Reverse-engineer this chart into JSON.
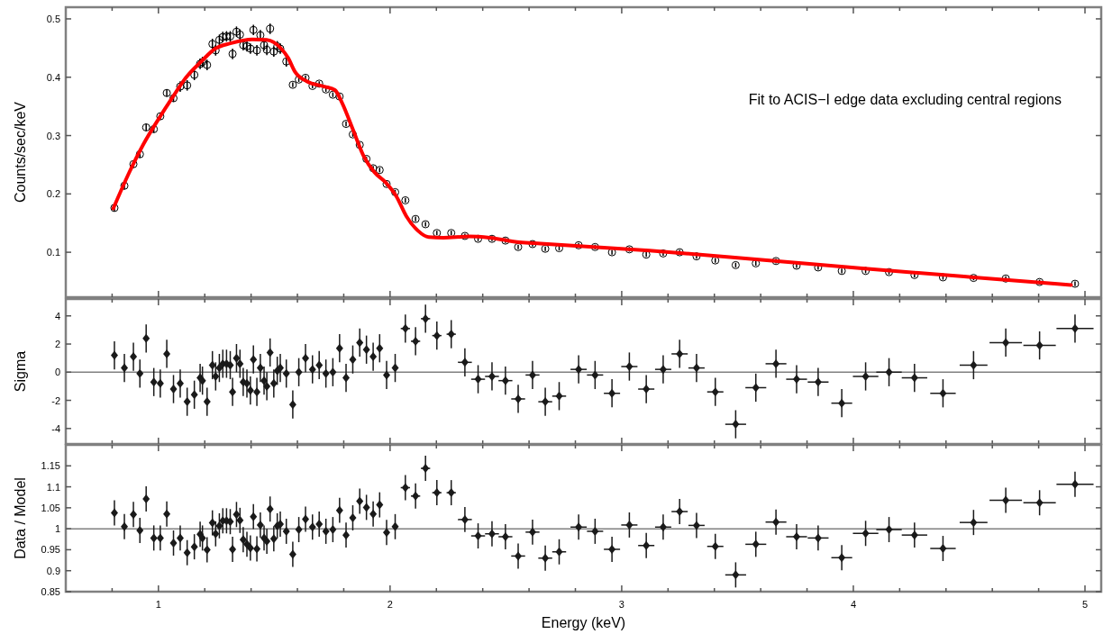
{
  "chart_data": [
    {
      "type": "scatter",
      "xlim": [
        0.6,
        5.07
      ],
      "ylim": [
        0.023,
        0.52
      ],
      "yticks": [
        0.1,
        0.2,
        0.3,
        0.4,
        0.5
      ],
      "xticks": [
        {
          "value": 0.8,
          "label": null
        },
        1,
        {
          "value": 1.2,
          "label": null
        },
        {
          "value": 1.4,
          "label": null
        },
        {
          "value": 1.6,
          "label": null
        },
        {
          "value": 1.8,
          "label": null
        },
        2,
        {
          "value": 2.2,
          "label": null
        },
        {
          "value": 2.4,
          "label": null
        },
        {
          "value": 2.6,
          "label": null
        },
        {
          "value": 2.8,
          "label": null
        },
        3,
        {
          "value": 3.2,
          "label": null
        },
        {
          "value": 3.4,
          "label": null
        },
        {
          "value": 3.6,
          "label": null
        },
        {
          "value": 3.8,
          "label": null
        },
        4,
        {
          "value": 4.2,
          "label": null
        },
        {
          "value": 4.4,
          "label": null
        },
        {
          "value": 4.6,
          "label": null
        },
        {
          "value": 4.8,
          "label": null
        },
        5
      ],
      "tick_labels": "y",
      "ylabel": "Counts/sec/keV",
      "annotations": [
        "Fit to ACIS−I edge data excluding central regions"
      ],
      "x": [
        0.81,
        0.853,
        0.892,
        0.92,
        0.947,
        0.98,
        1.008,
        1.036,
        1.065,
        1.094,
        1.124,
        1.155,
        1.18,
        1.19,
        1.21,
        1.233,
        1.247,
        1.263,
        1.278,
        1.294,
        1.31,
        1.32,
        1.337,
        1.352,
        1.366,
        1.382,
        1.397,
        1.41,
        1.425,
        1.44,
        1.456,
        1.468,
        1.482,
        1.498,
        1.513,
        1.526,
        1.552,
        1.58,
        1.606,
        1.635,
        1.665,
        1.694,
        1.723,
        1.753,
        1.782,
        1.81,
        1.839,
        1.869,
        1.898,
        1.927,
        1.955,
        1.985,
        2.022,
        2.066,
        2.11,
        2.153,
        2.202,
        2.264,
        2.323,
        2.38,
        2.44,
        2.498,
        2.553,
        2.615,
        2.67,
        2.73,
        2.814,
        2.885,
        2.958,
        3.033,
        3.106,
        3.179,
        3.25,
        3.323,
        3.404,
        3.492,
        3.579,
        3.666,
        3.755,
        3.848,
        3.95,
        4.053,
        4.154,
        4.264,
        4.387,
        4.519,
        4.658,
        4.804,
        4.957
      ],
      "series": [
        {
          "color": "#000000",
          "marker": "circle",
          "values": [
            0.176,
            0.214,
            0.251,
            0.268,
            0.314,
            0.311,
            0.333,
            0.373,
            0.364,
            0.384,
            0.386,
            0.404,
            0.423,
            0.426,
            0.421,
            0.457,
            0.446,
            0.464,
            0.469,
            0.47,
            0.47,
            0.44,
            0.478,
            0.473,
            0.455,
            0.453,
            0.449,
            0.481,
            0.446,
            0.472,
            0.455,
            0.447,
            0.483,
            0.444,
            0.453,
            0.449,
            0.427,
            0.387,
            0.396,
            0.399,
            0.385,
            0.389,
            0.379,
            0.37,
            0.367,
            0.32,
            0.302,
            0.284,
            0.26,
            0.244,
            0.241,
            0.217,
            0.203,
            0.189,
            0.157,
            0.148,
            0.133,
            0.133,
            0.128,
            0.123,
            0.123,
            0.12,
            0.109,
            0.114,
            0.106,
            0.107,
            0.112,
            0.109,
            0.1,
            0.105,
            0.096,
            0.098,
            0.1,
            0.093,
            0.086,
            0.078,
            0.081,
            0.085,
            0.077,
            0.074,
            0.068,
            0.068,
            0.066,
            0.061,
            0.057,
            0.056,
            0.055,
            0.049,
            0.046
          ],
          "errors": [
            0.006,
            0.006,
            0.006,
            0.006,
            0.006,
            0.006,
            0.006,
            0.006,
            0.006,
            0.009,
            0.009,
            0.009,
            0.009,
            0.009,
            0.009,
            0.009,
            0.009,
            0.009,
            0.009,
            0.009,
            0.009,
            0.009,
            0.009,
            0.009,
            0.009,
            0.009,
            0.009,
            0.009,
            0.009,
            0.009,
            0.009,
            0.009,
            0.009,
            0.009,
            0.009,
            0.009,
            0.009,
            0.004,
            0.004,
            0.004,
            0.004,
            0.004,
            0.004,
            0.004,
            0.004,
            0.004,
            0.004,
            0.004,
            0.004,
            0.004,
            0.004,
            0.004,
            0.004,
            0.004,
            0.004,
            0.004,
            0.004,
            0.004,
            0.004,
            0.004,
            0.004,
            0.004,
            0.004,
            0.004,
            0.004,
            0.004,
            0.004,
            0.004,
            0.004,
            0.004,
            0.004,
            0.004,
            0.004,
            0.004,
            0.004,
            0.004,
            0.004,
            0.004,
            0.004,
            0.004,
            0.004,
            0.004,
            0.004,
            0.004,
            0.004,
            0.004,
            0.004,
            0.004,
            0.004
          ]
        },
        {
          "type": "line",
          "color": "#ff0000",
          "x": [
            0.805,
            0.873,
            0.935,
            1.0,
            1.06,
            1.12,
            1.185,
            1.245,
            1.31,
            1.405,
            1.467,
            1.53,
            1.56,
            1.59,
            1.64,
            1.716,
            1.762,
            1.793,
            1.84,
            1.887,
            1.933,
            1.98,
            2.027,
            2.07,
            2.12,
            2.167,
            2.23,
            2.34,
            2.43,
            2.56,
            2.65,
            3.12,
            3.58,
            4.05,
            4.52,
            4.94
          ],
          "values": [
            0.175,
            0.236,
            0.285,
            0.328,
            0.365,
            0.4,
            0.427,
            0.449,
            0.458,
            0.465,
            0.464,
            0.449,
            0.433,
            0.409,
            0.393,
            0.384,
            0.378,
            0.356,
            0.31,
            0.264,
            0.237,
            0.22,
            0.196,
            0.162,
            0.137,
            0.126,
            0.125,
            0.127,
            0.125,
            0.117,
            0.115,
            0.103,
            0.088,
            0.072,
            0.057,
            0.044
          ]
        }
      ]
    },
    {
      "type": "scatter",
      "xlim": [
        0.6,
        5.07
      ],
      "ylim": [
        -5.1,
        5.2
      ],
      "yticks": [
        -4,
        -2,
        0,
        2,
        4
      ],
      "xticks": [
        {
          "value": 0.8,
          "label": null
        },
        1,
        {
          "value": 1.2,
          "label": null
        },
        {
          "value": 1.4,
          "label": null
        },
        {
          "value": 1.6,
          "label": null
        },
        {
          "value": 1.8,
          "label": null
        },
        2,
        {
          "value": 2.2,
          "label": null
        },
        {
          "value": 2.4,
          "label": null
        },
        {
          "value": 2.6,
          "label": null
        },
        {
          "value": 2.8,
          "label": null
        },
        3,
        {
          "value": 3.2,
          "label": null
        },
        {
          "value": 3.4,
          "label": null
        },
        {
          "value": 3.6,
          "label": null
        },
        {
          "value": 3.8,
          "label": null
        },
        4,
        {
          "value": 4.2,
          "label": null
        },
        {
          "value": 4.4,
          "label": null
        },
        {
          "value": 4.6,
          "label": null
        },
        {
          "value": 4.8,
          "label": null
        },
        5
      ],
      "tick_labels": "y",
      "ylabel": "Sigma",
      "marker": "diamond",
      "ref_lines": [
        {
          "axis": "y",
          "value": 0,
          "color": "#808080"
        }
      ],
      "x": [
        0.81,
        0.853,
        0.892,
        0.92,
        0.947,
        0.98,
        1.008,
        1.036,
        1.065,
        1.094,
        1.124,
        1.155,
        1.18,
        1.19,
        1.21,
        1.233,
        1.247,
        1.263,
        1.278,
        1.294,
        1.31,
        1.32,
        1.337,
        1.352,
        1.366,
        1.382,
        1.397,
        1.41,
        1.425,
        1.44,
        1.456,
        1.468,
        1.482,
        1.498,
        1.513,
        1.526,
        1.552,
        1.58,
        1.606,
        1.635,
        1.665,
        1.694,
        1.723,
        1.753,
        1.782,
        1.81,
        1.839,
        1.869,
        1.898,
        1.927,
        1.955,
        1.985,
        2.022,
        2.066,
        2.11,
        2.153,
        2.202,
        2.264,
        2.323,
        2.38,
        2.44,
        2.498,
        2.553,
        2.615,
        2.67,
        2.73,
        2.814,
        2.885,
        2.958,
        3.033,
        3.106,
        3.179,
        3.25,
        3.323,
        3.404,
        3.492,
        3.579,
        3.666,
        3.755,
        3.848,
        3.95,
        4.053,
        4.154,
        4.264,
        4.387,
        4.519,
        4.658,
        4.804,
        4.957
      ],
      "series": [
        {
          "color": "#1a1a1a",
          "values": [
            1.2,
            0.3,
            1.1,
            -0.1,
            2.4,
            -0.7,
            -0.8,
            1.3,
            -1.2,
            -0.8,
            -2.1,
            -1.6,
            -0.4,
            -0.6,
            -2.1,
            0.5,
            -0.3,
            0.3,
            0.6,
            0.6,
            0.5,
            -1.4,
            1.0,
            0.6,
            -0.7,
            -0.8,
            -1.3,
            0.9,
            -1.4,
            0.3,
            -0.6,
            -1.0,
            1.4,
            -0.8,
            0.1,
            0.3,
            -0.1,
            -2.3,
            0.0,
            1.0,
            0.2,
            0.5,
            -0.1,
            0.0,
            1.7,
            -0.4,
            0.9,
            2.1,
            1.6,
            1.1,
            1.7,
            -0.2,
            0.3,
            3.1,
            2.2,
            3.8,
            2.6,
            2.7,
            0.7,
            -0.5,
            -0.3,
            -0.6,
            -1.9,
            -0.2,
            -2.1,
            -1.7,
            0.2,
            -0.2,
            -1.5,
            0.4,
            -1.2,
            0.2,
            1.3,
            0.3,
            -1.4,
            -3.7,
            -1.1,
            0.6,
            -0.5,
            -0.7,
            -2.2,
            -0.3,
            0.0,
            -0.4,
            -1.5,
            0.5,
            2.1,
            1.9,
            3.1
          ],
          "errors": [
            1,
            1,
            1,
            1,
            1,
            1,
            1,
            1,
            1,
            1,
            1,
            1,
            1,
            1,
            1,
            1,
            1,
            1,
            1,
            1,
            1,
            1,
            1,
            1,
            1,
            1,
            1,
            1,
            1,
            1,
            1,
            1,
            1,
            1,
            1,
            1,
            1,
            1,
            1,
            1,
            1,
            1,
            1,
            1,
            1,
            1,
            1,
            1,
            1,
            1,
            1,
            1,
            1,
            1,
            1,
            1,
            1,
            1,
            1,
            1,
            1,
            1,
            1,
            1,
            1,
            1,
            1,
            1,
            1,
            1,
            1,
            1,
            1,
            1,
            1,
            1,
            1,
            1,
            1,
            1,
            1,
            1,
            1,
            1,
            1,
            1,
            1,
            1,
            1
          ],
          "xerrors": [
            0.01,
            0.01,
            0.01,
            0.01,
            0.01,
            0.01,
            0.01,
            0.01,
            0.01,
            0.01,
            0.01,
            0.01,
            0.01,
            0.01,
            0.01,
            0.01,
            0.01,
            0.01,
            0.01,
            0.01,
            0.01,
            0.01,
            0.01,
            0.01,
            0.01,
            0.01,
            0.01,
            0.01,
            0.01,
            0.01,
            0.01,
            0.01,
            0.01,
            0.01,
            0.01,
            0.01,
            0.01,
            0.01,
            0.01,
            0.01,
            0.01,
            0.01,
            0.01,
            0.01,
            0.01,
            0.01,
            0.01,
            0.01,
            0.01,
            0.01,
            0.01,
            0.01,
            0.01,
            0.02,
            0.02,
            0.02,
            0.02,
            0.02,
            0.03,
            0.03,
            0.03,
            0.03,
            0.03,
            0.03,
            0.03,
            0.03,
            0.035,
            0.035,
            0.035,
            0.035,
            0.035,
            0.035,
            0.035,
            0.035,
            0.035,
            0.045,
            0.045,
            0.045,
            0.045,
            0.045,
            0.045,
            0.055,
            0.055,
            0.055,
            0.055,
            0.06,
            0.07,
            0.07,
            0.08
          ]
        }
      ]
    },
    {
      "type": "scatter",
      "xlim": [
        0.6,
        5.07
      ],
      "ylim": [
        0.85,
        1.2
      ],
      "yticks": [
        0.85,
        0.9,
        0.95,
        1,
        1.05,
        1.1,
        1.15
      ],
      "xticks": [
        {
          "value": 0.8,
          "label": null
        },
        1,
        {
          "value": 1.2,
          "label": null
        },
        {
          "value": 1.4,
          "label": null
        },
        {
          "value": 1.6,
          "label": null
        },
        {
          "value": 1.8,
          "label": null
        },
        2,
        {
          "value": 2.2,
          "label": null
        },
        {
          "value": 2.4,
          "label": null
        },
        {
          "value": 2.6,
          "label": null
        },
        {
          "value": 2.8,
          "label": null
        },
        3,
        {
          "value": 3.2,
          "label": null
        },
        {
          "value": 3.4,
          "label": null
        },
        {
          "value": 3.6,
          "label": null
        },
        {
          "value": 3.8,
          "label": null
        },
        4,
        {
          "value": 4.2,
          "label": null
        },
        {
          "value": 4.4,
          "label": null
        },
        {
          "value": 4.6,
          "label": null
        },
        {
          "value": 4.8,
          "label": null
        },
        5
      ],
      "ylabel": "Data / Model",
      "xlabel": "Energy (keV)",
      "marker": "diamond",
      "ref_lines": [
        {
          "axis": "y",
          "value": 1,
          "color": "#808080"
        }
      ],
      "x": [
        0.81,
        0.853,
        0.892,
        0.92,
        0.947,
        0.98,
        1.008,
        1.036,
        1.065,
        1.094,
        1.124,
        1.155,
        1.18,
        1.19,
        1.21,
        1.233,
        1.247,
        1.263,
        1.278,
        1.294,
        1.31,
        1.32,
        1.337,
        1.352,
        1.366,
        1.382,
        1.397,
        1.41,
        1.425,
        1.44,
        1.456,
        1.468,
        1.482,
        1.498,
        1.513,
        1.526,
        1.552,
        1.58,
        1.606,
        1.635,
        1.665,
        1.694,
        1.723,
        1.753,
        1.782,
        1.81,
        1.839,
        1.869,
        1.898,
        1.927,
        1.955,
        1.985,
        2.022,
        2.066,
        2.11,
        2.153,
        2.202,
        2.264,
        2.323,
        2.38,
        2.44,
        2.498,
        2.553,
        2.615,
        2.67,
        2.73,
        2.814,
        2.885,
        2.958,
        3.033,
        3.106,
        3.179,
        3.25,
        3.323,
        3.404,
        3.492,
        3.579,
        3.666,
        3.755,
        3.848,
        3.95,
        4.053,
        4.154,
        4.264,
        4.387,
        4.519,
        4.658,
        4.804,
        4.957
      ],
      "series": [
        {
          "color": "#1a1a1a",
          "values": [
            1.038,
            1.005,
            1.034,
            0.996,
            1.071,
            0.978,
            0.978,
            1.035,
            0.966,
            0.978,
            0.943,
            0.957,
            0.987,
            0.978,
            0.95,
            1.014,
            0.988,
            1.007,
            1.019,
            1.019,
            1.017,
            0.951,
            1.034,
            1.02,
            0.974,
            0.963,
            0.954,
            1.029,
            0.952,
            1.009,
            0.978,
            0.97,
            1.047,
            0.976,
            1.007,
            1.011,
            0.994,
            0.939,
            0.998,
            1.023,
            1.004,
            1.011,
            0.994,
            0.998,
            1.044,
            0.985,
            1.026,
            1.066,
            1.051,
            1.035,
            1.057,
            0.991,
            1.005,
            1.098,
            1.078,
            1.144,
            1.086,
            1.086,
            1.022,
            0.983,
            0.988,
            0.981,
            0.935,
            0.992,
            0.93,
            0.945,
            1.004,
            0.994,
            0.951,
            1.009,
            0.96,
            1.004,
            1.041,
            1.008,
            0.958,
            0.89,
            0.963,
            1.016,
            0.981,
            0.978,
            0.931,
            0.989,
            0.998,
            0.985,
            0.953,
            1.015,
            1.068,
            1.062,
            1.106
          ],
          "errors": [
            0.03,
            0.03,
            0.03,
            0.03,
            0.03,
            0.03,
            0.03,
            0.03,
            0.03,
            0.03,
            0.03,
            0.03,
            0.03,
            0.03,
            0.03,
            0.03,
            0.03,
            0.03,
            0.03,
            0.03,
            0.03,
            0.03,
            0.03,
            0.03,
            0.03,
            0.03,
            0.03,
            0.03,
            0.03,
            0.03,
            0.03,
            0.03,
            0.03,
            0.03,
            0.03,
            0.03,
            0.03,
            0.03,
            0.03,
            0.03,
            0.03,
            0.03,
            0.03,
            0.03,
            0.03,
            0.03,
            0.03,
            0.03,
            0.03,
            0.03,
            0.03,
            0.03,
            0.03,
            0.03,
            0.03,
            0.03,
            0.03,
            0.03,
            0.03,
            0.03,
            0.03,
            0.03,
            0.03,
            0.03,
            0.03,
            0.03,
            0.03,
            0.03,
            0.03,
            0.03,
            0.03,
            0.03,
            0.03,
            0.03,
            0.03,
            0.03,
            0.03,
            0.03,
            0.03,
            0.03,
            0.03,
            0.03,
            0.03,
            0.03,
            0.03,
            0.03,
            0.03,
            0.03,
            0.03
          ],
          "xerrors": [
            0.01,
            0.01,
            0.01,
            0.01,
            0.01,
            0.01,
            0.01,
            0.01,
            0.01,
            0.01,
            0.01,
            0.01,
            0.01,
            0.01,
            0.01,
            0.01,
            0.01,
            0.01,
            0.01,
            0.01,
            0.01,
            0.01,
            0.01,
            0.01,
            0.01,
            0.01,
            0.01,
            0.01,
            0.01,
            0.01,
            0.01,
            0.01,
            0.01,
            0.01,
            0.01,
            0.01,
            0.01,
            0.01,
            0.01,
            0.01,
            0.01,
            0.01,
            0.01,
            0.01,
            0.01,
            0.01,
            0.01,
            0.01,
            0.01,
            0.01,
            0.01,
            0.01,
            0.01,
            0.02,
            0.02,
            0.02,
            0.02,
            0.02,
            0.03,
            0.03,
            0.03,
            0.03,
            0.03,
            0.03,
            0.03,
            0.03,
            0.035,
            0.035,
            0.035,
            0.035,
            0.035,
            0.035,
            0.035,
            0.035,
            0.035,
            0.045,
            0.045,
            0.045,
            0.045,
            0.045,
            0.045,
            0.055,
            0.055,
            0.055,
            0.055,
            0.06,
            0.07,
            0.07,
            0.08
          ]
        }
      ]
    }
  ]
}
